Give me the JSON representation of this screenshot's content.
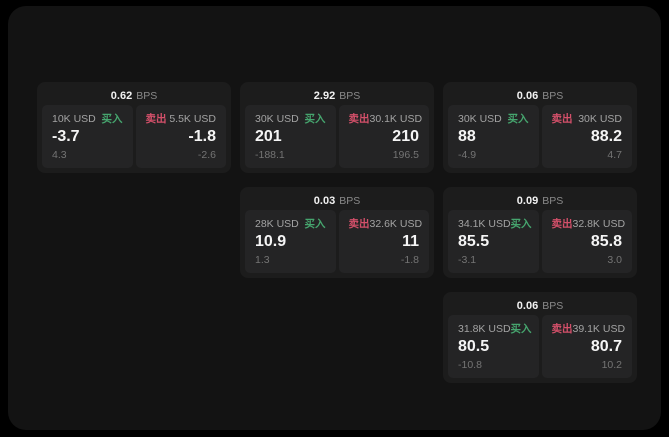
{
  "colors": {
    "background": "#000000",
    "window": "#131313",
    "card": "#1c1c1c",
    "panel": "#242425",
    "buy": "#46a56e",
    "sell": "#d4506a"
  },
  "cards": [
    {
      "bps": "0.62",
      "bps_unit": "BPS",
      "buy": {
        "size": "10K USD",
        "side": "买入",
        "price": "-3.7",
        "delta": "4.3"
      },
      "sell": {
        "side": "卖出",
        "size": "5.5K USD",
        "price": "-1.8",
        "delta": "-2.6"
      }
    },
    {
      "bps": "2.92",
      "bps_unit": "BPS",
      "buy": {
        "size": "30K USD",
        "side": "买入",
        "price": "201",
        "delta": "-188.1"
      },
      "sell": {
        "side": "卖出",
        "size": "30.1K USD",
        "price": "210",
        "delta": "196.5"
      }
    },
    {
      "bps": "0.06",
      "bps_unit": "BPS",
      "buy": {
        "size": "30K USD",
        "side": "买入",
        "price": "88",
        "delta": "-4.9"
      },
      "sell": {
        "side": "卖出",
        "size": "30K USD",
        "price": "88.2",
        "delta": "4.7"
      }
    },
    {
      "bps": "0.03",
      "bps_unit": "BPS",
      "buy": {
        "size": "28K USD",
        "side": "买入",
        "price": "10.9",
        "delta": "1.3"
      },
      "sell": {
        "side": "卖出",
        "size": "32.6K USD",
        "price": "11",
        "delta": "-1.8"
      }
    },
    {
      "bps": "0.09",
      "bps_unit": "BPS",
      "buy": {
        "size": "34.1K USD",
        "side": "买入",
        "price": "85.5",
        "delta": "-3.1"
      },
      "sell": {
        "side": "卖出",
        "size": "32.8K USD",
        "price": "85.8",
        "delta": "3.0"
      }
    },
    {
      "bps": "0.06",
      "bps_unit": "BPS",
      "buy": {
        "size": "31.8K USD",
        "side": "买入",
        "price": "80.5",
        "delta": "-10.8"
      },
      "sell": {
        "side": "卖出",
        "size": "39.1K USD",
        "price": "80.7",
        "delta": "10.2"
      }
    }
  ]
}
